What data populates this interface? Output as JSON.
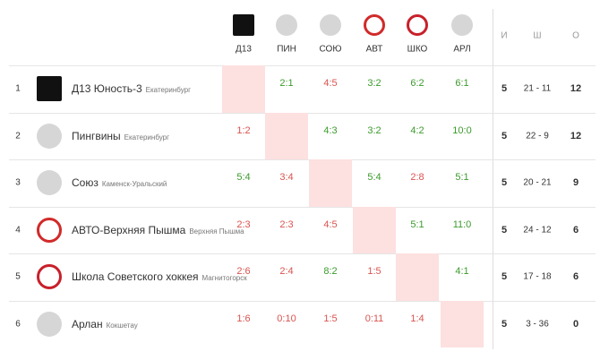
{
  "header": {
    "columns": [
      "Д13",
      "ПИН",
      "СОЮ",
      "АВТ",
      "ШКО",
      "АРЛ"
    ],
    "stats": [
      "И",
      "Ш",
      "О"
    ]
  },
  "rows": [
    {
      "rank": 1,
      "name": "Д13 Юность-3",
      "city": "Екатеринбург",
      "results": [
        null,
        "2:1",
        "4:5",
        "3:2",
        "6:2",
        "6:1"
      ],
      "games": 5,
      "goals": "21 - 11",
      "points": 12
    },
    {
      "rank": 2,
      "name": "Пингвины",
      "city": "Екатеринбург",
      "results": [
        "1:2",
        null,
        "4:3",
        "3:2",
        "4:2",
        "10:0"
      ],
      "games": 5,
      "goals": "22 - 9",
      "points": 12
    },
    {
      "rank": 3,
      "name": "Союз",
      "city": "Каменск-Уральский",
      "results": [
        "5:4",
        "3:4",
        null,
        "5:4",
        "2:8",
        "5:1"
      ],
      "games": 5,
      "goals": "20 - 21",
      "points": 9
    },
    {
      "rank": 4,
      "name": "АВТО-Верхняя Пышма",
      "city": "Верхняя Пышма",
      "results": [
        "2:3",
        "2:3",
        "4:5",
        null,
        "5:1",
        "11:0"
      ],
      "games": 5,
      "goals": "24 - 12",
      "points": 6
    },
    {
      "rank": 5,
      "name": "Школа Советского хоккея",
      "city": "Магнитогорск",
      "results": [
        "2:6",
        "2:4",
        "8:2",
        "1:5",
        null,
        "4:1"
      ],
      "games": 5,
      "goals": "17 - 18",
      "points": 6
    },
    {
      "rank": 6,
      "name": "Арлан",
      "city": "Кокшетау",
      "results": [
        "1:6",
        "0:10",
        "1:5",
        "0:11",
        "1:4",
        null
      ],
      "games": 5,
      "goals": "3 - 36",
      "points": 0
    }
  ]
}
